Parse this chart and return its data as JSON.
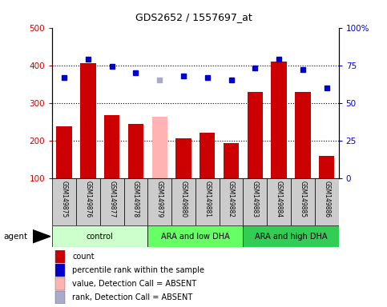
{
  "title": "GDS2652 / 1557697_at",
  "samples": [
    "GSM149875",
    "GSM149876",
    "GSM149877",
    "GSM149878",
    "GSM149879",
    "GSM149880",
    "GSM149881",
    "GSM149882",
    "GSM149883",
    "GSM149884",
    "GSM149885",
    "GSM149886"
  ],
  "bar_values": [
    238,
    405,
    268,
    245,
    263,
    205,
    220,
    192,
    328,
    410,
    328,
    158
  ],
  "bar_absent": [
    false,
    false,
    false,
    false,
    true,
    false,
    false,
    false,
    false,
    false,
    false,
    false
  ],
  "percentile_values": [
    67,
    79,
    74,
    70,
    65,
    68,
    67,
    65,
    73,
    79,
    72,
    60
  ],
  "percentile_absent": [
    false,
    false,
    false,
    false,
    true,
    false,
    false,
    false,
    false,
    false,
    false,
    false
  ],
  "bar_color_normal": "#cc0000",
  "bar_color_absent": "#ffb3b3",
  "dot_color_normal": "#0000cc",
  "dot_color_absent": "#aaaacc",
  "ylim_left": [
    100,
    500
  ],
  "ylim_right": [
    0,
    100
  ],
  "yticks_left": [
    100,
    200,
    300,
    400,
    500
  ],
  "yticks_right": [
    0,
    25,
    50,
    75,
    100
  ],
  "yticklabels_right": [
    "0",
    "25",
    "50",
    "75",
    "100%"
  ],
  "groups": [
    {
      "label": "control",
      "start": 0,
      "end": 3,
      "color": "#ccffcc"
    },
    {
      "label": "ARA and low DHA",
      "start": 4,
      "end": 7,
      "color": "#66ff66"
    },
    {
      "label": "ARA and high DHA",
      "start": 8,
      "end": 11,
      "color": "#33cc55"
    }
  ],
  "agent_label": "agent",
  "legend_items": [
    {
      "label": "count",
      "color": "#cc0000"
    },
    {
      "label": "percentile rank within the sample",
      "color": "#0000cc"
    },
    {
      "label": "value, Detection Call = ABSENT",
      "color": "#ffb3b3"
    },
    {
      "label": "rank, Detection Call = ABSENT",
      "color": "#aaaacc"
    }
  ],
  "background_color": "#ffffff",
  "sample_bg_color": "#cccccc"
}
